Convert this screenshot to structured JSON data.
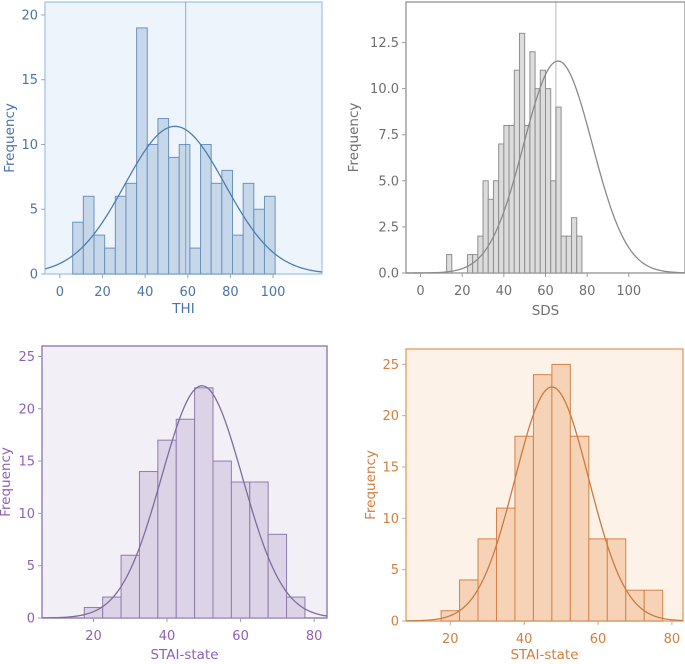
{
  "chart_data": [
    {
      "id": "thi",
      "type": "bar",
      "xlabel": "THI",
      "ylabel": "Frequency",
      "xlim": [
        -7,
        123
      ],
      "ylim": [
        0,
        21
      ],
      "xticks": [
        0,
        20,
        40,
        60,
        80,
        100
      ],
      "yticks": [
        0,
        5,
        10,
        15,
        20
      ],
      "ytick_labels": [
        "0",
        "5",
        "10",
        "15",
        "20"
      ],
      "bin_width": 5,
      "bin_start": 6,
      "values": [
        4,
        6,
        3,
        2,
        6,
        7,
        19,
        10,
        12,
        9,
        10,
        2,
        10,
        7,
        8,
        3,
        7,
        5,
        6
      ],
      "normal_curve": {
        "mean": 54,
        "sd": 23.5,
        "peak": 11.4
      },
      "vline": 59,
      "background": "#eef4fb",
      "frame_color": "#a9c9ea",
      "bar_fill": "#c6d7ea",
      "bar_edge": "#6b93bd",
      "line_color": "#4d7fb0",
      "text_color": "#4a74a8",
      "axis_color": "#9aa5b4"
    },
    {
      "id": "sds",
      "type": "bar",
      "xlabel": "SDS",
      "ylabel": "Frequency",
      "xlim": [
        -7,
        127
      ],
      "ylim": [
        0,
        14.7
      ],
      "xticks": [
        0,
        20,
        40,
        60,
        80,
        100
      ],
      "yticks": [
        0,
        2.5,
        5,
        7.5,
        10,
        12.5
      ],
      "ytick_labels": [
        "0.0",
        "2.5",
        "5.0",
        "7.5",
        "10.0",
        "12.5"
      ],
      "bin_width": 2.5,
      "bin_start": 12.5,
      "values": [
        1,
        0,
        0,
        0,
        1,
        1,
        2,
        5,
        4,
        5,
        7,
        8,
        8,
        11,
        13,
        8,
        12,
        10,
        11,
        10,
        5,
        9,
        2,
        2,
        3,
        2
      ],
      "normal_curve": {
        "mean": 66,
        "sd": 16.5,
        "peak": 11.5
      },
      "vline": 65,
      "background": "#ffffff",
      "frame_color": "#9a9a9a",
      "bar_fill": "#dcdcdc",
      "bar_edge": "#8f8f8f",
      "line_color": "#8a8a8a",
      "text_color": "#6f6f6f",
      "axis_color": "#9a9a9a"
    },
    {
      "id": "stai",
      "type": "bar",
      "xlabel": "STAI-state",
      "ylabel": "Frequency",
      "xlim": [
        6,
        83.5
      ],
      "ylim": [
        0,
        26
      ],
      "xticks": [
        20,
        40,
        60,
        80
      ],
      "yticks": [
        0,
        5,
        10,
        15,
        20,
        25
      ],
      "ytick_labels": [
        "0",
        "5",
        "10",
        "15",
        "20",
        "25"
      ],
      "bin_width": 5,
      "bin_start": 17.5,
      "values": [
        1,
        2,
        6,
        14,
        17,
        19,
        22,
        15,
        13,
        13,
        8,
        2
      ],
      "normal_curve": {
        "mean": 49.5,
        "sd": 11,
        "peak": 22.2
      },
      "vline": null,
      "background": "#f3eff7",
      "frame_color": "#8f7cad",
      "bar_fill": "#ddd3e7",
      "bar_edge": "#8f7cad",
      "line_color": "#7d6d9f",
      "text_color": "#8e61b8",
      "axis_color": "#a59ab9"
    },
    {
      "id": "stai2",
      "type": "bar",
      "xlabel": "STAI-state",
      "ylabel": "Frequency",
      "xlim": [
        8,
        83
      ],
      "ylim": [
        0,
        26.5
      ],
      "xticks": [
        20,
        40,
        60,
        80
      ],
      "yticks": [
        0,
        5,
        10,
        15,
        20,
        25
      ],
      "ytick_labels": [
        "0",
        "5",
        "10",
        "15",
        "20",
        "25"
      ],
      "bin_width": 5,
      "bin_start": 17.5,
      "values": [
        1,
        4,
        8,
        11,
        18,
        24,
        25,
        18,
        8,
        8,
        3,
        3
      ],
      "normal_curve": {
        "mean": 47.5,
        "sd": 10,
        "peak": 22.8
      },
      "vline": null,
      "background": "#fdf2e7",
      "frame_color": "#e3a36a",
      "bar_fill": "#f6d3b6",
      "bar_edge": "#d4824a",
      "line_color": "#cc7a41",
      "text_color": "#d47e3e",
      "axis_color": "#c9a98f"
    }
  ]
}
